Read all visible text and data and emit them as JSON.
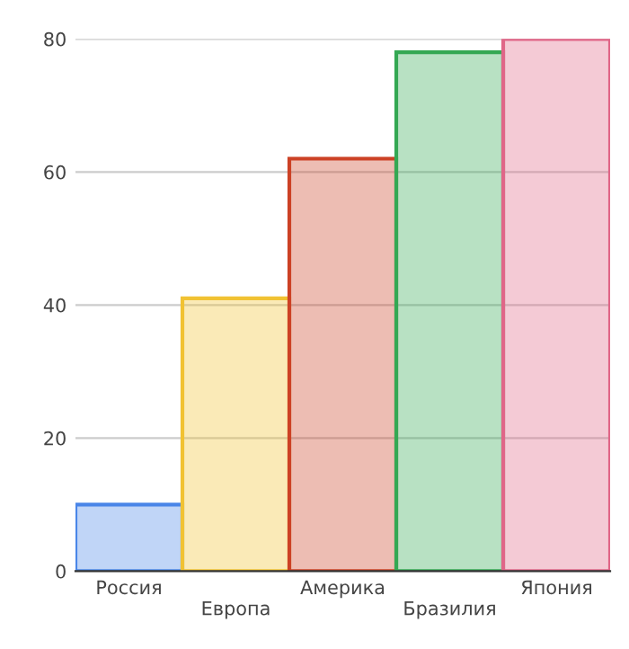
{
  "chart_data": {
    "type": "bar",
    "categories": [
      "Россия",
      "Европа",
      "Америка",
      "Бразилия",
      "Япония"
    ],
    "values": [
      10,
      41,
      62,
      78,
      80
    ],
    "colors": [
      "#4a86e8",
      "#f1c232",
      "#cc4125",
      "#34a853",
      "#e06688"
    ],
    "ylim": [
      0,
      80
    ],
    "yticks": [
      0,
      20,
      40,
      60,
      80
    ],
    "grid": "y"
  }
}
